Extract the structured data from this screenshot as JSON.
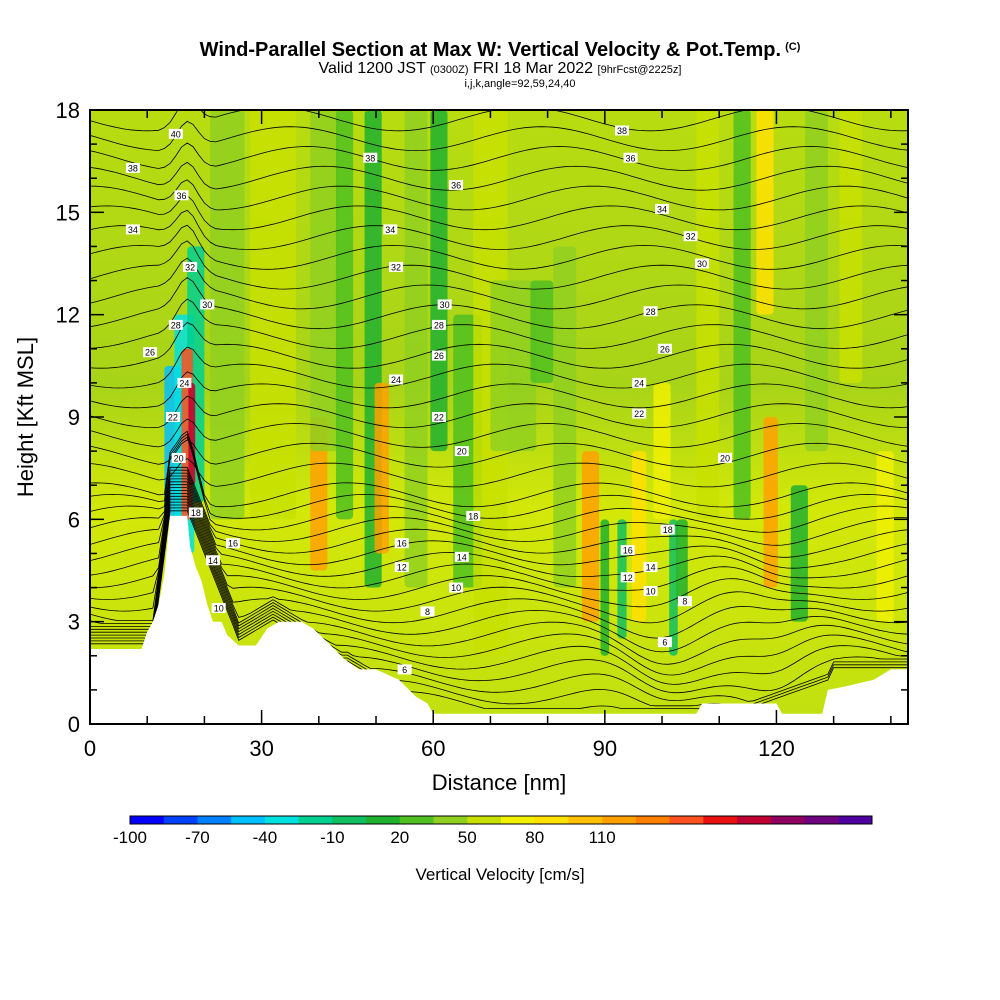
{
  "title": {
    "main": "Wind-Parallel Section at Max W: Vertical Velocity & Pot.Temp.",
    "copyright": "(C)",
    "valid_prefix": "Valid 1200 JST",
    "valid_zulu": "(0300Z)",
    "valid_date": "FRI 18 Mar 2022",
    "forecast": "[9hrFcst@2225z]",
    "params": "i,j,k,angle=92,59,24,40"
  },
  "chart_data": {
    "type": "heatmap",
    "xlabel": "Distance [nm]",
    "ylabel": "Height [Kft MSL]",
    "xlim": [
      0,
      143
    ],
    "ylim": [
      0,
      18
    ],
    "x_ticks": [
      "0",
      "30",
      "60",
      "90",
      "120"
    ],
    "y_ticks": [
      "0",
      "3",
      "6",
      "9",
      "12",
      "15",
      "18"
    ],
    "colorbar": {
      "label": "Vertical Velocity [cm/s]",
      "tick_labels": [
        "-100",
        "-70",
        "-40",
        "-10",
        "20",
        "50",
        "80",
        "110"
      ],
      "colors": [
        "#0000ff",
        "#0040ff",
        "#0080ff",
        "#00c0ff",
        "#00e0e0",
        "#00d090",
        "#10c060",
        "#20b030",
        "#50c020",
        "#90d020",
        "#c8e000",
        "#f0f000",
        "#ffe000",
        "#ffc000",
        "#ffa000",
        "#ff8000",
        "#ff5020",
        "#e81010",
        "#c00030",
        "#900060",
        "#700080",
        "#5000a0"
      ]
    },
    "contour_labels": [
      {
        "text": "40",
        "x": 15,
        "y": 17.3
      },
      {
        "text": "38",
        "x": 7.5,
        "y": 16.3
      },
      {
        "text": "36",
        "x": 16,
        "y": 15.5
      },
      {
        "text": "34",
        "x": 7.5,
        "y": 14.5
      },
      {
        "text": "32",
        "x": 17.5,
        "y": 13.4
      },
      {
        "text": "30",
        "x": 20.5,
        "y": 12.3
      },
      {
        "text": "28",
        "x": 15,
        "y": 11.7
      },
      {
        "text": "26",
        "x": 10.5,
        "y": 10.9
      },
      {
        "text": "24",
        "x": 16.5,
        "y": 10.0
      },
      {
        "text": "22",
        "x": 14.5,
        "y": 9.0
      },
      {
        "text": "20",
        "x": 15.5,
        "y": 7.8
      },
      {
        "text": "18",
        "x": 18.5,
        "y": 6.2
      },
      {
        "text": "16",
        "x": 25,
        "y": 5.3
      },
      {
        "text": "14",
        "x": 21.5,
        "y": 4.8
      },
      {
        "text": "10",
        "x": 22.5,
        "y": 3.4
      },
      {
        "text": "38",
        "x": 49,
        "y": 16.6
      },
      {
        "text": "36",
        "x": 64,
        "y": 15.8
      },
      {
        "text": "34",
        "x": 52.5,
        "y": 14.5
      },
      {
        "text": "32",
        "x": 53.5,
        "y": 13.4
      },
      {
        "text": "30",
        "x": 62,
        "y": 12.3
      },
      {
        "text": "28",
        "x": 61,
        "y": 11.7
      },
      {
        "text": "26",
        "x": 61,
        "y": 10.8
      },
      {
        "text": "24",
        "x": 53.5,
        "y": 10.1
      },
      {
        "text": "22",
        "x": 61,
        "y": 9.0
      },
      {
        "text": "20",
        "x": 65,
        "y": 8.0
      },
      {
        "text": "18",
        "x": 67,
        "y": 6.1
      },
      {
        "text": "16",
        "x": 54.5,
        "y": 5.3
      },
      {
        "text": "14",
        "x": 65,
        "y": 4.9
      },
      {
        "text": "12",
        "x": 54.5,
        "y": 4.6
      },
      {
        "text": "10",
        "x": 64,
        "y": 4.0
      },
      {
        "text": "8",
        "x": 59,
        "y": 3.3
      },
      {
        "text": "6",
        "x": 55,
        "y": 1.6
      },
      {
        "text": "38",
        "x": 93,
        "y": 17.4
      },
      {
        "text": "36",
        "x": 94.5,
        "y": 16.6
      },
      {
        "text": "34",
        "x": 100,
        "y": 15.1
      },
      {
        "text": "32",
        "x": 105,
        "y": 14.3
      },
      {
        "text": "30",
        "x": 107,
        "y": 13.5
      },
      {
        "text": "28",
        "x": 98,
        "y": 12.1
      },
      {
        "text": "26",
        "x": 100.5,
        "y": 11.0
      },
      {
        "text": "24",
        "x": 96,
        "y": 10.0
      },
      {
        "text": "22",
        "x": 96,
        "y": 9.1
      },
      {
        "text": "20",
        "x": 111,
        "y": 7.8
      },
      {
        "text": "18",
        "x": 101,
        "y": 5.7
      },
      {
        "text": "16",
        "x": 94,
        "y": 5.1
      },
      {
        "text": "14",
        "x": 98,
        "y": 4.6
      },
      {
        "text": "12",
        "x": 94,
        "y": 4.3
      },
      {
        "text": "10",
        "x": 98,
        "y": 3.9
      },
      {
        "text": "8",
        "x": 104,
        "y": 3.6
      },
      {
        "text": "6",
        "x": 100.5,
        "y": 2.4
      }
    ]
  }
}
